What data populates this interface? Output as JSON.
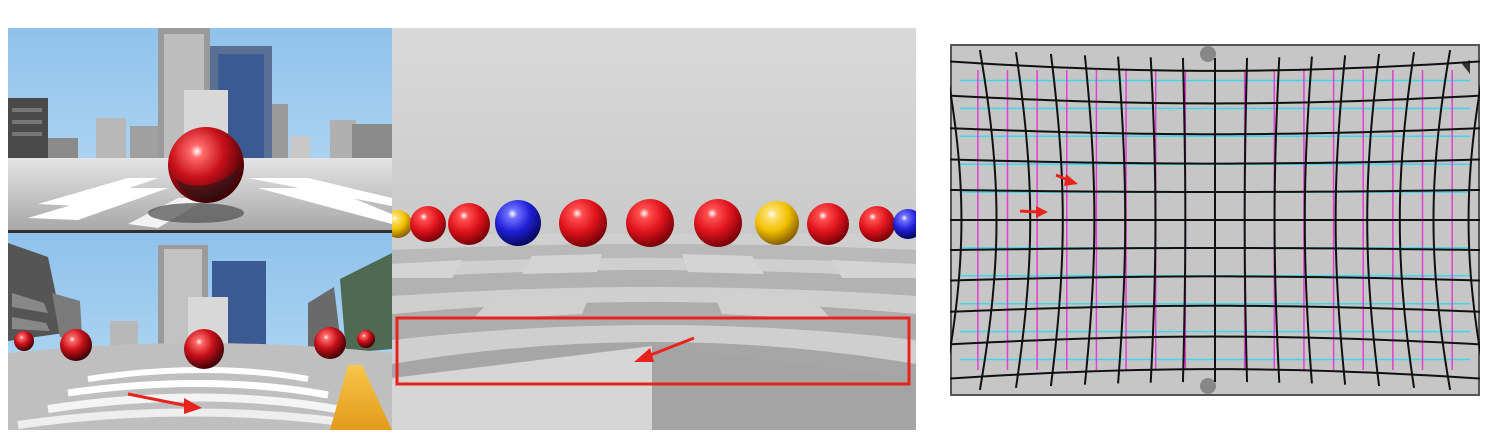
{
  "figure": {
    "panels": [
      {
        "name": "street-scene-rendering",
        "subpanels": [
          "rectilinear-view",
          "wide-angle-distorted-view"
        ]
      },
      {
        "name": "sphere-checkerboard-rendering"
      },
      {
        "name": "calibration-grid-photo"
      }
    ]
  },
  "colors": {
    "sky": "#9cc8ea",
    "sphere_red": "#e0141c",
    "sphere_blue": "#2020d8",
    "sphere_yellow": "#f0c000",
    "annotation_red": "#e8231e",
    "grid_black": "#101010",
    "grid_cyan": "#3fd8e8",
    "grid_magenta": "#e040d0"
  },
  "icons": [
    "arrow-annotation",
    "rectangle-annotation"
  ]
}
